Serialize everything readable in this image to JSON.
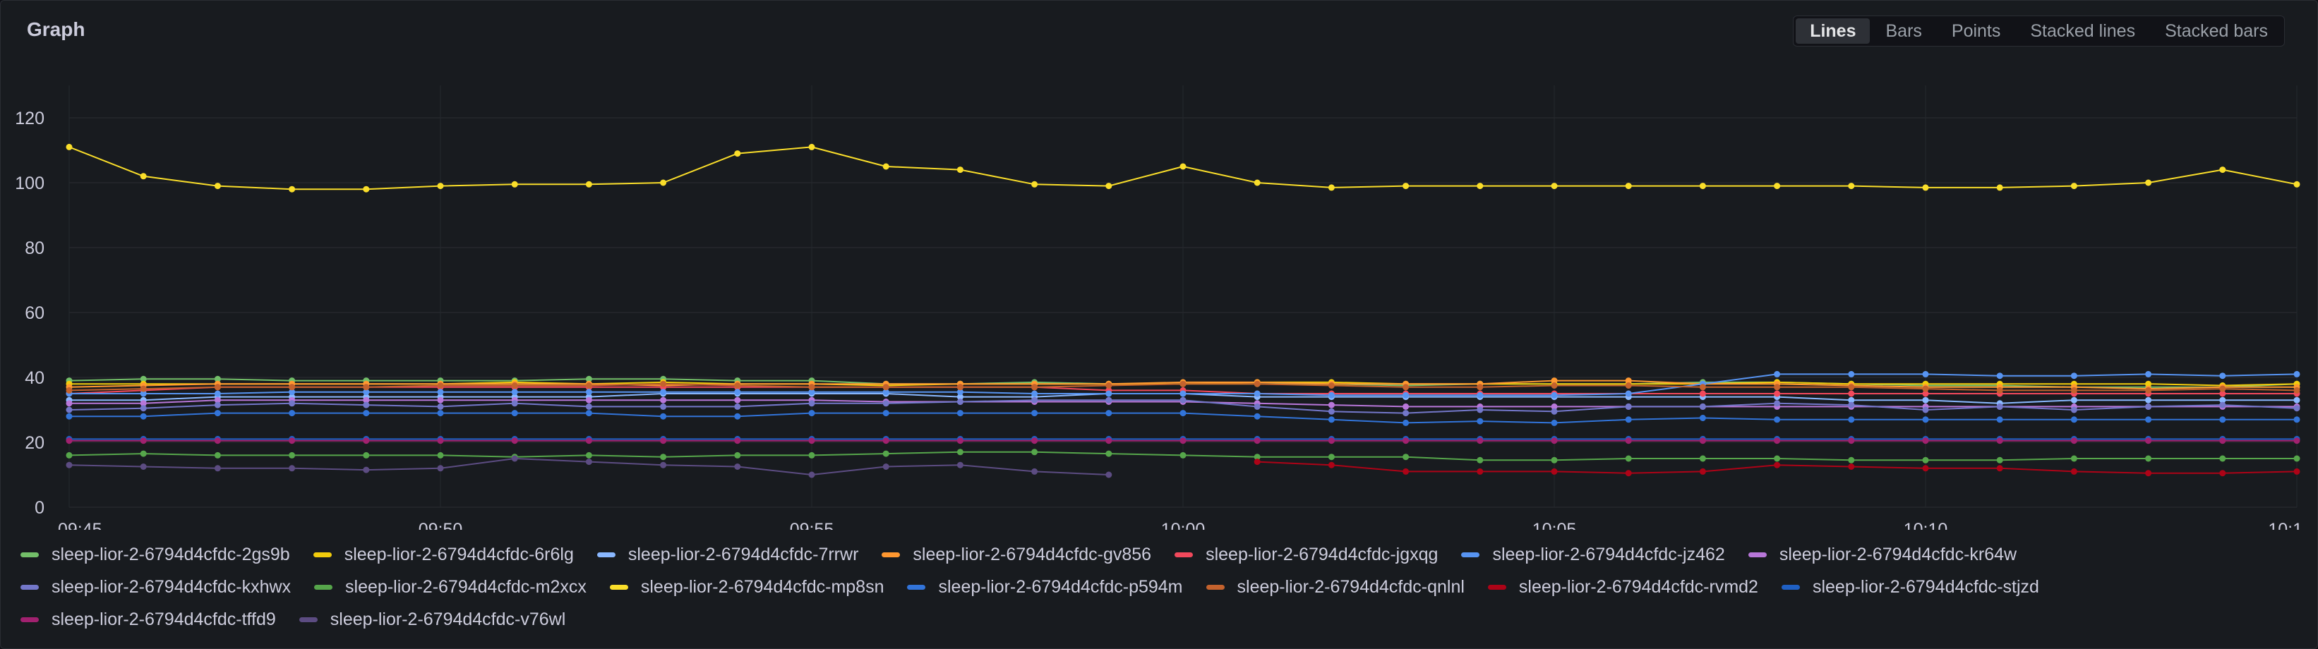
{
  "panel": {
    "title": "Graph"
  },
  "view_modes": [
    "Lines",
    "Bars",
    "Points",
    "Stacked lines",
    "Stacked bars"
  ],
  "active_view_mode": "Lines",
  "chart_data": {
    "type": "line",
    "title": "",
    "xlabel": "",
    "ylabel": "",
    "x": [
      "09:45",
      "09:46",
      "09:47",
      "09:48",
      "09:49",
      "09:50",
      "09:51",
      "09:52",
      "09:53",
      "09:54",
      "09:55",
      "09:56",
      "09:57",
      "09:58",
      "09:59",
      "10:00",
      "10:01",
      "10:02",
      "10:03",
      "10:04",
      "10:05",
      "10:06",
      "10:07",
      "10:08",
      "10:09",
      "10:10",
      "10:11",
      "10:12",
      "10:13",
      "10:14",
      "10:15"
    ],
    "x_tick_labels": [
      "09:45",
      "09:50",
      "09:55",
      "10:00",
      "10:05",
      "10:10",
      "10:1"
    ],
    "y_ticks": [
      0,
      20,
      40,
      60,
      80,
      100,
      120
    ],
    "ylim": [
      0,
      130
    ],
    "grid": true,
    "legend_position": "bottom",
    "series": [
      {
        "name": "sleep-lior-2-6794d4cfdc-2gs9b",
        "color": "#73bf69",
        "values": [
          39,
          39.5,
          39.5,
          39,
          39,
          39,
          39,
          39.5,
          39.5,
          39,
          39,
          38,
          38,
          38.5,
          38,
          38,
          38,
          38,
          37.5,
          38,
          38,
          38,
          38.5,
          38.5,
          38,
          37.5,
          37.5,
          37,
          37,
          37,
          38
        ]
      },
      {
        "name": "sleep-lior-2-6794d4cfdc-6r6lg",
        "color": "#f2cc0c",
        "values": [
          38,
          38,
          38,
          38,
          38,
          38,
          38.5,
          38,
          38.5,
          38,
          38,
          37.5,
          38,
          38,
          38,
          38,
          38.5,
          38.5,
          38,
          38,
          38,
          38,
          38,
          38.5,
          38,
          38,
          38,
          38,
          38,
          37.5,
          38
        ]
      },
      {
        "name": "sleep-lior-2-6794d4cfdc-7rrwr",
        "color": "#8ab8ff",
        "values": [
          33,
          33,
          34,
          34,
          34,
          34,
          34,
          34,
          35,
          35,
          35,
          35,
          34,
          34,
          35,
          35,
          34,
          34,
          34,
          34,
          34,
          34,
          34,
          34,
          33,
          33,
          32,
          33,
          33,
          33,
          33
        ]
      },
      {
        "name": "sleep-lior-2-6794d4cfdc-gv856",
        "color": "#ff9830",
        "values": [
          37,
          37.5,
          38,
          38,
          38,
          38,
          38,
          38,
          37.5,
          38,
          38,
          38,
          38,
          38,
          38,
          38.5,
          38.5,
          38,
          38,
          38,
          39,
          39,
          38,
          38,
          37.5,
          37,
          37,
          37,
          36.5,
          37,
          37
        ]
      },
      {
        "name": "sleep-lior-2-6794d4cfdc-jgxqg",
        "color": "#f2495c",
        "values": [
          35,
          36,
          37,
          37,
          37,
          37,
          37,
          37,
          37,
          37,
          37,
          37,
          37,
          37,
          36,
          36,
          35,
          35,
          35,
          35,
          35,
          35,
          35,
          35,
          35,
          35,
          35,
          35,
          35,
          35,
          35
        ]
      },
      {
        "name": "sleep-lior-2-6794d4cfdc-jz462",
        "color": "#5794f2",
        "values": [
          35,
          35,
          35,
          35.5,
          35.5,
          35.5,
          35.5,
          35.5,
          35.5,
          35.5,
          35.5,
          35.5,
          35.5,
          35,
          35,
          35,
          35,
          34.5,
          34.5,
          34.5,
          34.5,
          35,
          38,
          41,
          41,
          41,
          40.5,
          40.5,
          41,
          40.5,
          41
        ]
      },
      {
        "name": "sleep-lior-2-6794d4cfdc-kr64w",
        "color": "#b877d9",
        "values": [
          32,
          32,
          33,
          33,
          33,
          33,
          33,
          33,
          33,
          33,
          33,
          32.5,
          32.5,
          32.5,
          32.5,
          32.5,
          32,
          31.5,
          31,
          31,
          31,
          31,
          31,
          31,
          31,
          31,
          31,
          31,
          31,
          31,
          31
        ]
      },
      {
        "name": "sleep-lior-2-6794d4cfdc-kxhwx",
        "color": "#7377c9",
        "values": [
          30,
          30.5,
          31.5,
          32,
          31.5,
          31,
          32,
          31,
          31,
          31,
          32,
          32,
          32.5,
          33,
          33,
          33,
          31,
          29.5,
          29,
          30,
          29.5,
          31,
          31,
          32,
          31.5,
          30,
          31,
          30,
          31,
          31.5,
          30.5
        ]
      },
      {
        "name": "sleep-lior-2-6794d4cfdc-m2xcx",
        "color": "#56a64b",
        "values": [
          16,
          16.5,
          16,
          16,
          16,
          16,
          15.5,
          16,
          15.5,
          16,
          16,
          16.5,
          17,
          17,
          16.5,
          16,
          15.5,
          15.5,
          15.5,
          14.5,
          14.5,
          15,
          15,
          15,
          14.5,
          14.5,
          14.5,
          15,
          15,
          15,
          15
        ]
      },
      {
        "name": "sleep-lior-2-6794d4cfdc-mp8sn",
        "color": "#fade2a",
        "values": [
          111,
          102,
          99,
          98,
          98,
          99,
          99.5,
          99.5,
          100,
          109,
          111,
          105,
          104,
          99.5,
          99,
          105,
          100,
          98.5,
          99,
          99,
          99,
          99,
          99,
          99,
          99,
          98.5,
          98.5,
          99,
          100,
          104,
          99.5
        ]
      },
      {
        "name": "sleep-lior-2-6794d4cfdc-p594m",
        "color": "#3274d9",
        "values": [
          28,
          28,
          29,
          29,
          29,
          29,
          29,
          29,
          28,
          28,
          29,
          29,
          29,
          29,
          29,
          29,
          28,
          27,
          26,
          26.5,
          26,
          27,
          27.5,
          27,
          27,
          27,
          27,
          27,
          27,
          27,
          27
        ]
      },
      {
        "name": "sleep-lior-2-6794d4cfdc-qnlnl",
        "color": "#c4622d",
        "values": [
          36,
          36.5,
          37,
          37,
          37,
          37.5,
          37.5,
          37.5,
          38,
          37.5,
          37,
          37,
          37,
          37,
          37.5,
          38,
          38,
          37.5,
          37,
          37,
          37.5,
          37.5,
          37,
          37,
          37,
          36.5,
          36,
          36,
          36,
          36.5,
          36
        ]
      },
      {
        "name": "sleep-lior-2-6794d4cfdc-rvmd2",
        "color": "#ad0317",
        "values": [
          null,
          null,
          null,
          null,
          null,
          null,
          null,
          null,
          null,
          null,
          null,
          null,
          null,
          null,
          null,
          null,
          14,
          13,
          11,
          11,
          11,
          10.5,
          11,
          13,
          12.5,
          12,
          12,
          11,
          10.5,
          10.5,
          11
        ]
      },
      {
        "name": "sleep-lior-2-6794d4cfdc-stjzd",
        "color": "#1f60c4",
        "values": [
          21,
          21,
          21,
          21,
          21,
          21,
          21,
          21,
          21,
          21,
          21,
          21,
          21,
          21,
          21,
          21,
          21,
          21,
          21,
          21,
          21,
          21,
          21,
          21,
          21,
          21,
          21,
          21,
          21,
          21,
          21
        ]
      },
      {
        "name": "sleep-lior-2-6794d4cfdc-tffd9",
        "color": "#a1216f",
        "values": [
          20.5,
          20.5,
          20.5,
          20.5,
          20.5,
          20.5,
          20.5,
          20.5,
          20.5,
          20.5,
          20.5,
          20.5,
          20.5,
          20.5,
          20.5,
          20.5,
          20.5,
          20.5,
          20.5,
          20.5,
          20.5,
          20.5,
          20.5,
          20.5,
          20.5,
          20.5,
          20.5,
          20.5,
          20.5,
          20.5,
          20.5
        ]
      },
      {
        "name": "sleep-lior-2-6794d4cfdc-v76wl",
        "color": "#5c4c82",
        "values": [
          13,
          12.5,
          12,
          12,
          11.5,
          12,
          15,
          14,
          13,
          12.5,
          10,
          12.5,
          13,
          11,
          10,
          null,
          null,
          null,
          null,
          null,
          null,
          null,
          null,
          null,
          null,
          null,
          null,
          null,
          null,
          null,
          null
        ]
      }
    ]
  }
}
